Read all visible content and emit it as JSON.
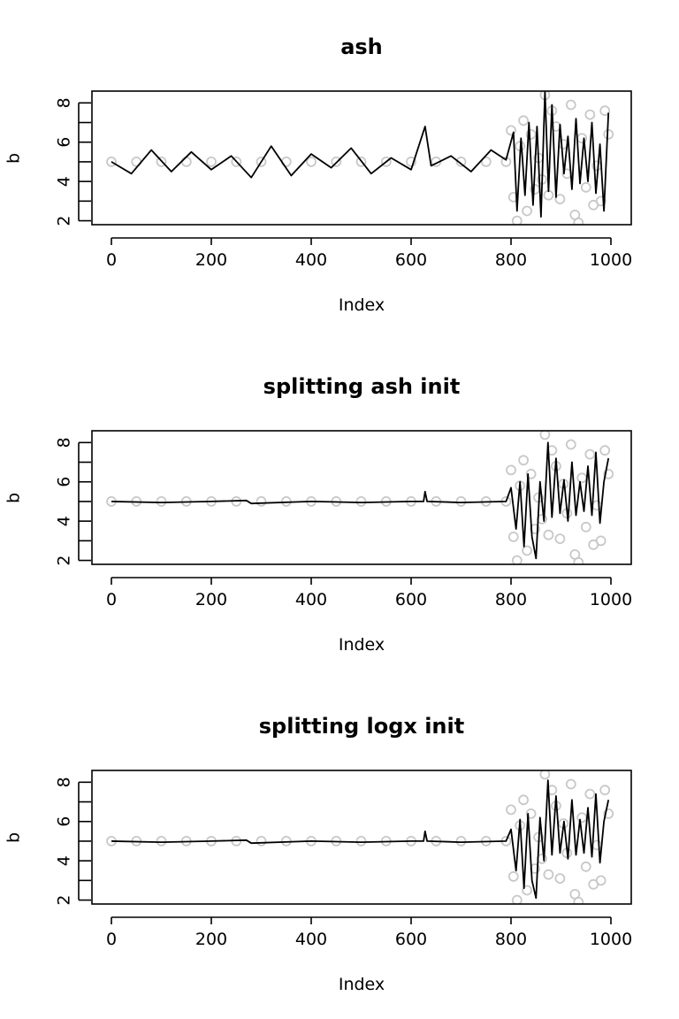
{
  "chart_data": [
    {
      "type": "line",
      "title": "ash",
      "xlabel": "Index",
      "ylabel": "b",
      "xlim": [
        0,
        1000
      ],
      "ylim": [
        1.8,
        8.6
      ],
      "x_ticks": [
        0,
        200,
        400,
        600,
        800,
        1000
      ],
      "y_ticks": [
        2,
        4,
        6,
        8
      ],
      "series": [
        {
          "kind": "points",
          "x": [
            0,
            50,
            100,
            150,
            200,
            250,
            300,
            350,
            400,
            450,
            500,
            550,
            600,
            650,
            700,
            750,
            790,
            800,
            805,
            812,
            818,
            825,
            832,
            840,
            848,
            855,
            862,
            868,
            875,
            882,
            890,
            898,
            905,
            912,
            920,
            928,
            935,
            942,
            950,
            958,
            965,
            972,
            980,
            988,
            995
          ],
          "values": [
            5,
            5,
            5,
            5,
            5,
            5,
            5,
            5,
            5,
            5,
            5,
            5,
            5,
            5,
            5,
            5,
            5,
            6.6,
            3.2,
            2.0,
            5.8,
            7.1,
            2.5,
            6.4,
            3.6,
            5.2,
            4.1,
            8.4,
            3.3,
            7.6,
            6.8,
            3.1,
            5.9,
            4.4,
            7.9,
            2.3,
            1.9,
            6.2,
            3.7,
            7.4,
            2.8,
            4.8,
            3.0,
            7.6,
            6.4
          ]
        },
        {
          "kind": "line",
          "x": [
            0,
            40,
            80,
            120,
            160,
            200,
            240,
            280,
            320,
            360,
            400,
            440,
            480,
            520,
            560,
            600,
            628,
            640,
            680,
            720,
            760,
            790,
            805,
            812,
            820,
            828,
            836,
            844,
            852,
            860,
            868,
            875,
            882,
            890,
            898,
            906,
            914,
            922,
            930,
            938,
            946,
            954,
            962,
            970,
            978,
            986,
            995
          ],
          "values": [
            5.0,
            4.4,
            5.6,
            4.5,
            5.5,
            4.6,
            5.3,
            4.2,
            5.8,
            4.3,
            5.4,
            4.7,
            5.7,
            4.4,
            5.2,
            4.6,
            6.8,
            4.8,
            5.3,
            4.5,
            5.6,
            5.1,
            6.5,
            2.5,
            6.2,
            3.3,
            7.0,
            2.8,
            6.8,
            2.2,
            8.6,
            3.5,
            7.9,
            3.2,
            6.9,
            4.4,
            6.3,
            3.6,
            7.2,
            3.9,
            6.2,
            4.0,
            7.0,
            3.4,
            5.9,
            2.5,
            7.5
          ]
        }
      ]
    },
    {
      "type": "line",
      "title": "splitting ash init",
      "xlabel": "Index",
      "ylabel": "b",
      "xlim": [
        0,
        1000
      ],
      "ylim": [
        1.8,
        8.6
      ],
      "x_ticks": [
        0,
        200,
        400,
        600,
        800,
        1000
      ],
      "y_ticks": [
        2,
        4,
        6,
        8
      ],
      "series": [
        {
          "kind": "points",
          "x": [
            0,
            50,
            100,
            150,
            200,
            250,
            300,
            350,
            400,
            450,
            500,
            550,
            600,
            650,
            700,
            750,
            790,
            800,
            805,
            812,
            818,
            825,
            832,
            840,
            848,
            855,
            862,
            868,
            875,
            882,
            890,
            898,
            905,
            912,
            920,
            928,
            935,
            942,
            950,
            958,
            965,
            972,
            980,
            988,
            995
          ],
          "values": [
            5,
            5,
            5,
            5,
            5,
            5,
            5,
            5,
            5,
            5,
            5,
            5,
            5,
            5,
            5,
            5,
            5,
            6.6,
            3.2,
            2.0,
            5.8,
            7.1,
            2.5,
            6.4,
            3.6,
            5.2,
            4.1,
            8.4,
            3.3,
            7.6,
            6.8,
            3.1,
            5.9,
            4.4,
            7.9,
            2.3,
            1.9,
            6.2,
            3.7,
            7.4,
            2.8,
            4.8,
            3.0,
            7.6,
            6.4
          ]
        },
        {
          "kind": "line",
          "x": [
            0,
            100,
            200,
            270,
            280,
            400,
            500,
            600,
            625,
            628,
            632,
            700,
            790,
            800,
            810,
            818,
            826,
            834,
            842,
            850,
            858,
            866,
            874,
            882,
            890,
            898,
            906,
            914,
            922,
            930,
            938,
            946,
            954,
            962,
            970,
            978,
            986,
            995
          ],
          "values": [
            5.0,
            4.95,
            5.0,
            5.05,
            4.9,
            5.0,
            4.95,
            5.0,
            5.0,
            5.5,
            5.0,
            4.95,
            5.0,
            5.7,
            3.6,
            6.0,
            2.7,
            6.4,
            3.2,
            2.1,
            6.0,
            4.0,
            8.0,
            4.2,
            7.2,
            4.4,
            6.1,
            4.0,
            7.0,
            4.3,
            6.0,
            4.5,
            6.8,
            4.3,
            7.5,
            3.9,
            6.0,
            7.2
          ]
        }
      ]
    },
    {
      "type": "line",
      "title": "splitting logx init",
      "xlabel": "Index",
      "ylabel": "b",
      "xlim": [
        0,
        1000
      ],
      "ylim": [
        1.8,
        8.6
      ],
      "x_ticks": [
        0,
        200,
        400,
        600,
        800,
        1000
      ],
      "y_ticks": [
        2,
        4,
        6,
        8
      ],
      "series": [
        {
          "kind": "points",
          "x": [
            0,
            50,
            100,
            150,
            200,
            250,
            300,
            350,
            400,
            450,
            500,
            550,
            600,
            650,
            700,
            750,
            790,
            800,
            805,
            812,
            818,
            825,
            832,
            840,
            848,
            855,
            862,
            868,
            875,
            882,
            890,
            898,
            905,
            912,
            920,
            928,
            935,
            942,
            950,
            958,
            965,
            972,
            980,
            988,
            995
          ],
          "values": [
            5,
            5,
            5,
            5,
            5,
            5,
            5,
            5,
            5,
            5,
            5,
            5,
            5,
            5,
            5,
            5,
            5,
            6.6,
            3.2,
            2.0,
            5.8,
            7.1,
            2.5,
            6.4,
            3.6,
            5.2,
            4.1,
            8.4,
            3.3,
            7.6,
            6.8,
            3.1,
            5.9,
            4.4,
            7.9,
            2.3,
            1.9,
            6.2,
            3.7,
            7.4,
            2.8,
            4.8,
            3.0,
            7.6,
            6.4
          ]
        },
        {
          "kind": "line",
          "x": [
            0,
            100,
            200,
            270,
            280,
            400,
            500,
            600,
            625,
            628,
            632,
            700,
            790,
            800,
            810,
            818,
            826,
            834,
            842,
            850,
            858,
            866,
            874,
            882,
            890,
            898,
            906,
            914,
            922,
            930,
            938,
            946,
            954,
            962,
            970,
            978,
            986,
            995
          ],
          "values": [
            5.0,
            4.95,
            5.0,
            5.05,
            4.9,
            5.0,
            4.95,
            5.0,
            5.0,
            5.5,
            5.0,
            4.95,
            5.0,
            5.6,
            3.5,
            6.1,
            2.6,
            6.4,
            3.0,
            2.1,
            6.2,
            4.0,
            8.1,
            4.3,
            7.3,
            4.4,
            6.0,
            4.1,
            7.1,
            4.3,
            6.1,
            4.4,
            6.7,
            4.2,
            7.4,
            3.9,
            6.0,
            7.1
          ]
        }
      ]
    }
  ]
}
